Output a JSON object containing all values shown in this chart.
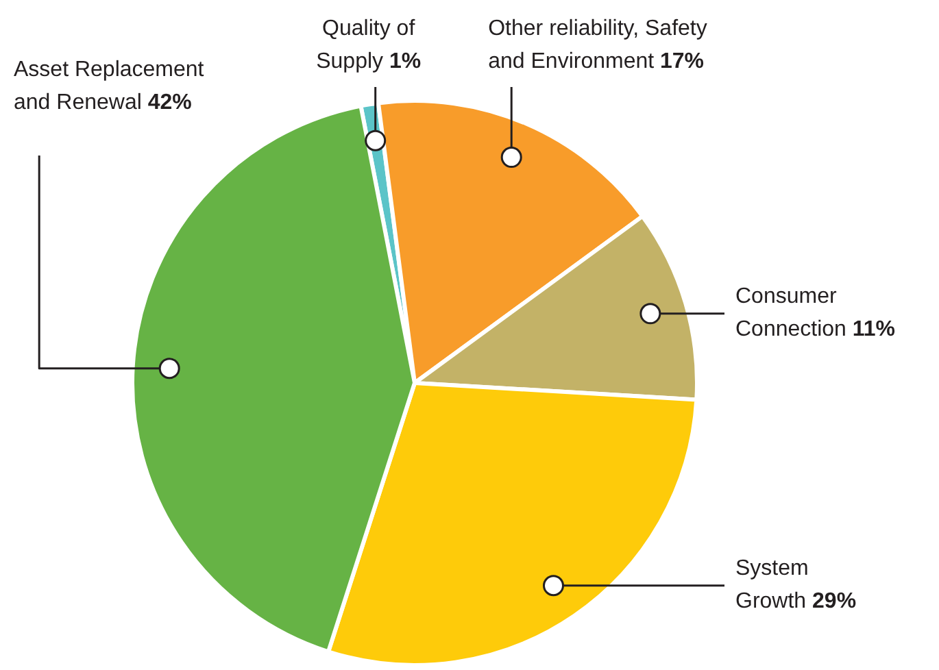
{
  "chart_data": {
    "type": "pie",
    "categories": [
      "Quality of Supply",
      "Other reliability, Safety and Environment",
      "Consumer Connection",
      "System Growth",
      "Asset Replacement and Renewal"
    ],
    "values": [
      1,
      17,
      11,
      29,
      42
    ],
    "value_labels": [
      "1%",
      "17%",
      "11%",
      "29%",
      "42%"
    ],
    "colors": [
      "#5bc4c8",
      "#f89c2a",
      "#c3b267",
      "#fecb0a",
      "#66b345"
    ],
    "legend": false
  }
}
